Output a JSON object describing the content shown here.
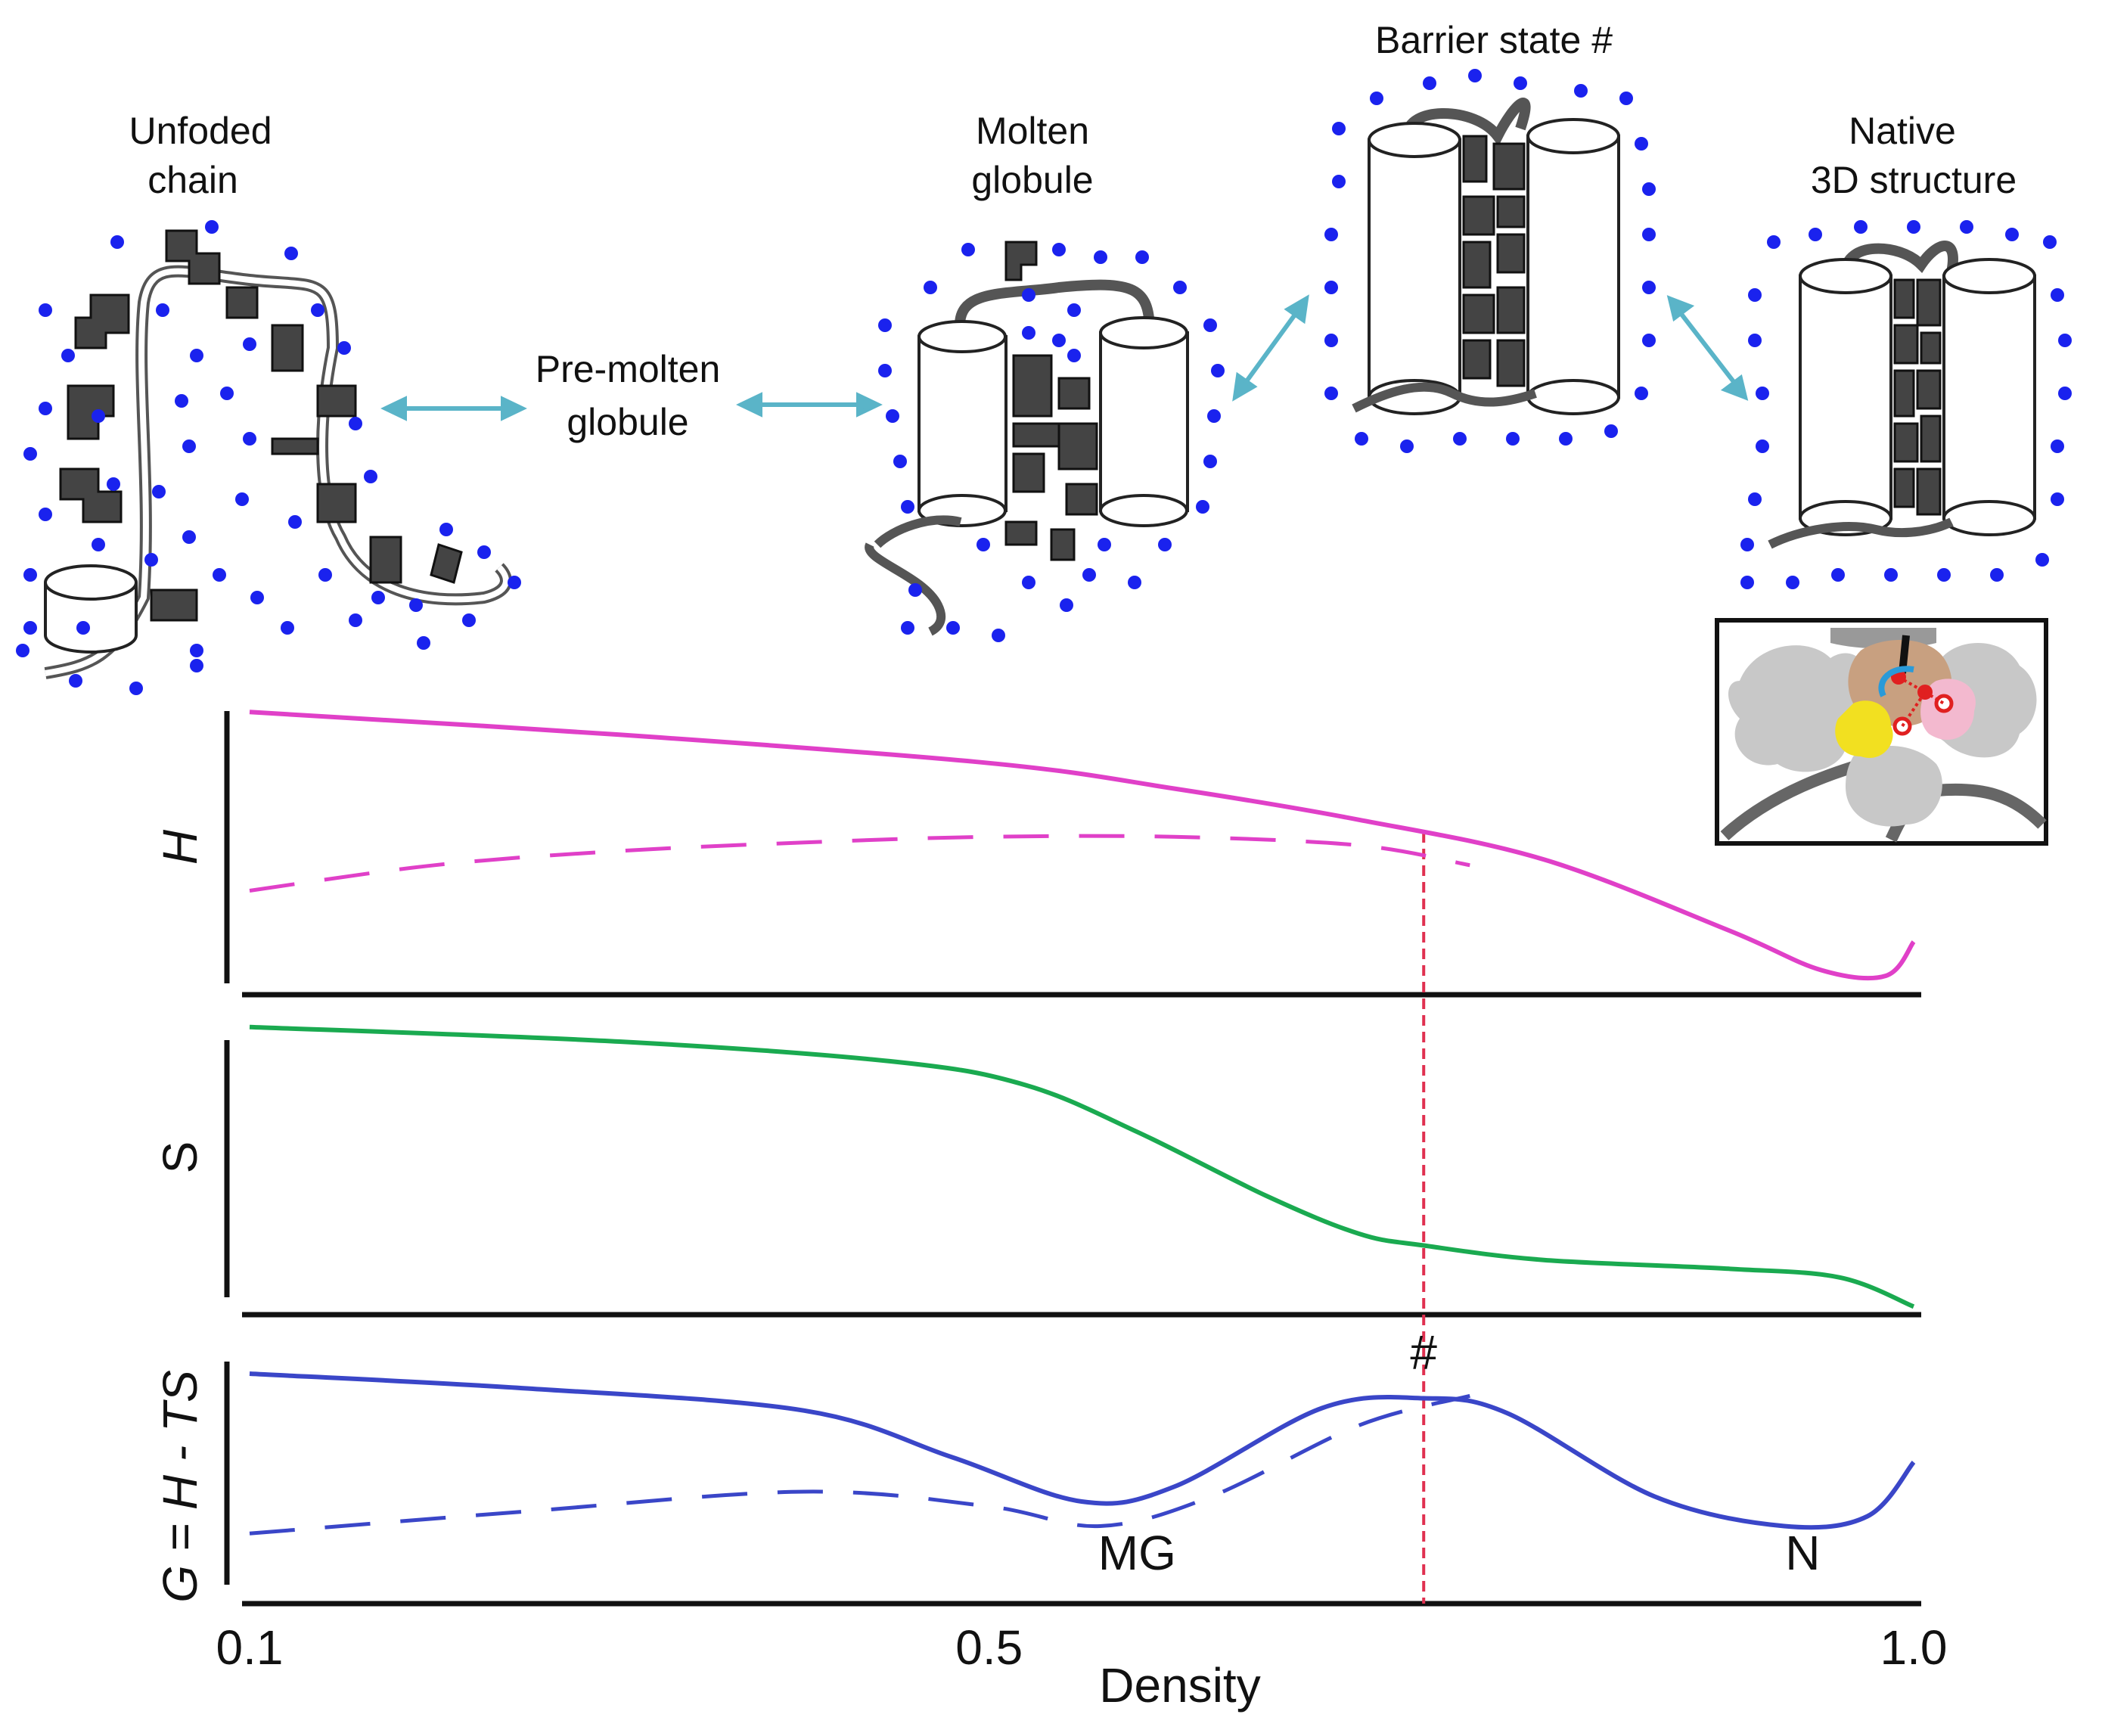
{
  "diagram": {
    "states": {
      "unfolded": [
        "Unfoded",
        "chain"
      ],
      "pre_molten": [
        "Pre-molten",
        "globule"
      ],
      "molten": [
        "Molten",
        "globule"
      ],
      "barrier": "Barrier state #",
      "native": [
        "Native",
        "3D structure"
      ]
    }
  },
  "chart_data": {
    "type": "line",
    "xlabel": "Density",
    "x_ticks": [
      "0.1",
      "0.5",
      "1.0"
    ],
    "x_tick_values": [
      0.1,
      0.5,
      1.0
    ],
    "xlim": [
      0.1,
      1.0
    ],
    "barrier_x": 0.735,
    "panels": [
      {
        "name": "enthalpy",
        "ylabel": "H",
        "color": "#e040c8",
        "ylim": [
          0,
          1
        ],
        "series": [
          {
            "name": "H",
            "style": "solid",
            "x": [
              0.1,
              0.3,
              0.5,
              0.6,
              0.7,
              0.8,
              0.9,
              0.95,
              0.985,
              1.0
            ],
            "y": [
              0.97,
              0.89,
              0.79,
              0.7,
              0.59,
              0.45,
              0.2,
              0.06,
              0.04,
              0.16
            ]
          },
          {
            "name": "H (alternative)",
            "style": "dashed",
            "x": [
              0.1,
              0.2,
              0.3,
              0.4,
              0.5,
              0.6,
              0.7,
              0.76
            ],
            "y": [
              0.34,
              0.43,
              0.48,
              0.51,
              0.53,
              0.53,
              0.5,
              0.43
            ]
          }
        ]
      },
      {
        "name": "entropy",
        "ylabel": "S",
        "color": "#1aaa50",
        "ylim": [
          0,
          1
        ],
        "series": [
          {
            "name": "S",
            "style": "solid",
            "x": [
              0.1,
              0.3,
              0.45,
              0.52,
              0.58,
              0.65,
              0.7,
              0.735,
              0.8,
              0.9,
              0.96,
              1.0
            ],
            "y": [
              0.98,
              0.93,
              0.86,
              0.78,
              0.62,
              0.4,
              0.27,
              0.23,
              0.18,
              0.15,
              0.12,
              0.02
            ]
          }
        ]
      },
      {
        "name": "free_energy",
        "ylabel": "G = H - TS",
        "color": "#3a46c8",
        "ylim": [
          0,
          1
        ],
        "annotations": [
          {
            "text": "#",
            "x": 0.735
          },
          {
            "text": "MG",
            "x": 0.58
          },
          {
            "text": "N",
            "x": 0.94
          }
        ],
        "series": [
          {
            "name": "G",
            "style": "solid",
            "x": [
              0.1,
              0.25,
              0.4,
              0.48,
              0.55,
              0.6,
              0.68,
              0.735,
              0.78,
              0.86,
              0.93,
              0.975,
              1.0
            ],
            "y": [
              0.92,
              0.86,
              0.77,
              0.58,
              0.4,
              0.46,
              0.78,
              0.82,
              0.76,
              0.42,
              0.3,
              0.34,
              0.56
            ]
          },
          {
            "name": "G (alternative)",
            "style": "dashed",
            "x": [
              0.1,
              0.25,
              0.4,
              0.5,
              0.56,
              0.62,
              0.7,
              0.76
            ],
            "y": [
              0.27,
              0.36,
              0.44,
              0.38,
              0.3,
              0.42,
              0.71,
              0.83
            ]
          }
        ]
      }
    ]
  }
}
